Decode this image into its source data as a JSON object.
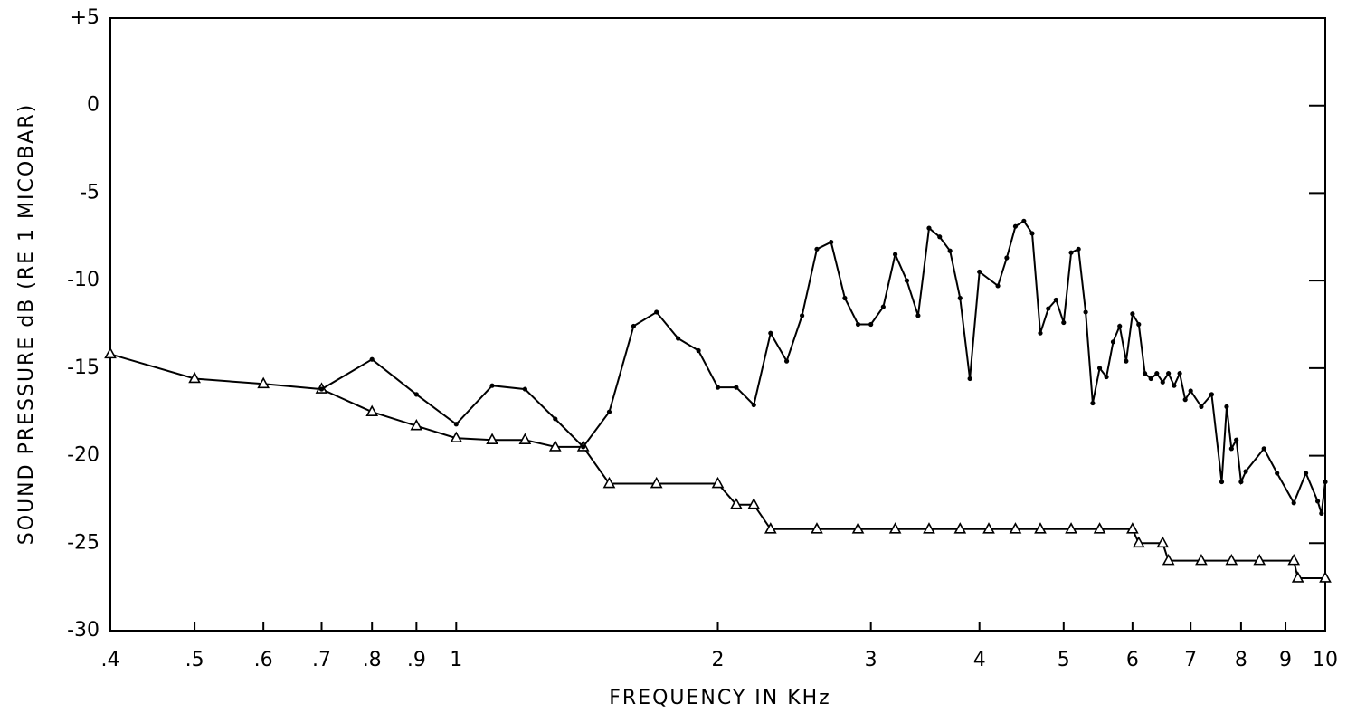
{
  "chart_data": {
    "type": "line",
    "xlabel": "FREQUENCY IN KHz",
    "ylabel": "SOUND PRESSURE dB  (RE 1 MICOBAR)",
    "xscale": "log",
    "xlim": [
      0.4,
      10
    ],
    "xticks": [
      {
        "value": 0.4,
        "label": ".4"
      },
      {
        "value": 0.5,
        "label": ".5"
      },
      {
        "value": 0.6,
        "label": ".6"
      },
      {
        "value": 0.7,
        "label": ".7"
      },
      {
        "value": 0.8,
        "label": ".8"
      },
      {
        "value": 0.9,
        "label": ".9"
      },
      1,
      2,
      3,
      4,
      5,
      6,
      7,
      8,
      9,
      10
    ],
    "ylim": [
      -30,
      5
    ],
    "yticks": [
      -30,
      -25,
      -20,
      -15,
      -10,
      -5,
      0,
      {
        "value": 5,
        "label": "+5"
      }
    ],
    "grid": false,
    "series": [
      {
        "color": "#000000",
        "marker": "triangle",
        "x": [
          0.4,
          0.5,
          0.6,
          0.7,
          0.8,
          0.9,
          1.0,
          1.1,
          1.2,
          1.3,
          1.4,
          1.5,
          1.7,
          2.0,
          2.1,
          2.2,
          2.3,
          2.6,
          2.9,
          3.2,
          3.5,
          3.8,
          4.1,
          4.4,
          4.7,
          5.1,
          5.5,
          6.0,
          6.1,
          6.5,
          6.6,
          7.2,
          7.8,
          8.4,
          9.2,
          9.3,
          10
        ],
        "values": [
          -14.2,
          -15.6,
          -15.9,
          -16.2,
          -17.5,
          -18.3,
          -19.0,
          -19.1,
          -19.1,
          -19.5,
          -19.5,
          -21.6,
          -21.6,
          -21.6,
          -22.8,
          -22.8,
          -24.2,
          -24.2,
          -24.2,
          -24.2,
          -24.2,
          -24.2,
          -24.2,
          -24.2,
          -24.2,
          -24.2,
          -24.2,
          -24.2,
          -25.0,
          -25.0,
          -26.0,
          -26.0,
          -26.0,
          -26.0,
          -26.0,
          -27.0,
          -27.0
        ]
      },
      {
        "color": "#000000",
        "marker": "dot",
        "x": [
          0.7,
          0.8,
          0.9,
          1.0,
          1.1,
          1.2,
          1.3,
          1.4,
          1.5,
          1.6,
          1.7,
          1.8,
          1.9,
          2.0,
          2.1,
          2.2,
          2.3,
          2.4,
          2.5,
          2.6,
          2.7,
          2.8,
          2.9,
          3.0,
          3.1,
          3.2,
          3.3,
          3.4,
          3.5,
          3.6,
          3.7,
          3.8,
          3.9,
          4.0,
          4.2,
          4.3,
          4.4,
          4.5,
          4.6,
          4.7,
          4.8,
          4.9,
          5.0,
          5.1,
          5.2,
          5.3,
          5.4,
          5.5,
          5.6,
          5.7,
          5.8,
          5.9,
          6.0,
          6.1,
          6.2,
          6.3,
          6.4,
          6.5,
          6.6,
          6.7,
          6.8,
          6.9,
          7.0,
          7.2,
          7.4,
          7.6,
          7.7,
          7.8,
          7.9,
          8.0,
          8.1,
          8.5,
          8.8,
          9.2,
          9.5,
          9.8,
          9.9,
          10
        ],
        "values": [
          -16.2,
          -14.5,
          -16.5,
          -18.2,
          -16.0,
          -16.2,
          -17.9,
          -19.5,
          -17.5,
          -12.6,
          -11.8,
          -13.3,
          -14.0,
          -16.1,
          -16.1,
          -17.1,
          -13.0,
          -14.6,
          -12.0,
          -8.2,
          -7.8,
          -11.0,
          -12.5,
          -12.5,
          -11.5,
          -8.5,
          -10.0,
          -12.0,
          -7.0,
          -7.5,
          -8.3,
          -11.0,
          -15.6,
          -9.5,
          -10.3,
          -8.7,
          -6.9,
          -6.6,
          -7.3,
          -13.0,
          -11.6,
          -11.1,
          -12.4,
          -8.4,
          -8.2,
          -11.8,
          -17.0,
          -15.0,
          -15.5,
          -13.5,
          -12.6,
          -14.6,
          -11.9,
          -12.5,
          -15.3,
          -15.6,
          -15.3,
          -15.8,
          -15.3,
          -16.0,
          -15.3,
          -16.8,
          -16.3,
          -17.2,
          -16.5,
          -21.5,
          -17.2,
          -19.6,
          -19.1,
          -21.5,
          -20.9,
          -19.6,
          -21.0,
          -22.7,
          -21.0,
          -22.6,
          -23.3,
          -21.5
        ]
      }
    ]
  }
}
